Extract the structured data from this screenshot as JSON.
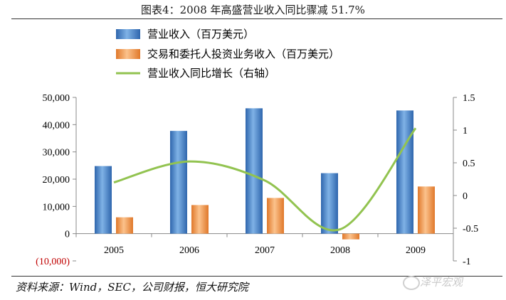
{
  "title": "图表4：2008 年高盛营业收入同比骤减 51.7%",
  "source": "资料来源：Wind，SEC，公司财报，恒大研究院",
  "watermark": "泽平宏观",
  "chart_data": {
    "type": "bar",
    "categories": [
      "2005",
      "2006",
      "2007",
      "2008",
      "2009"
    ],
    "series": [
      {
        "name": "营业收入（百万美元）",
        "type": "bar",
        "axis": "left",
        "color": "#3a78c0",
        "values": [
          24800,
          37700,
          46000,
          22200,
          45200
        ]
      },
      {
        "name": "交易和委托人投资业务收入（百万美元）",
        "type": "bar",
        "axis": "left",
        "color": "#f0913a",
        "values": [
          6000,
          10500,
          13100,
          -2100,
          17300
        ]
      },
      {
        "name": "营业收入同比增长（右轴）",
        "type": "line",
        "axis": "right",
        "color": "#92c350",
        "values": [
          0.2,
          0.52,
          0.23,
          -0.517,
          1.03
        ]
      }
    ],
    "y_left": {
      "min": -10000,
      "max": 50000,
      "step": 10000,
      "ticks": [
        "(10,000)",
        "0",
        "10,000",
        "20,000",
        "30,000",
        "40,000",
        "50,000"
      ]
    },
    "y_right": {
      "min": -1,
      "max": 1.5,
      "step": 0.5,
      "ticks": [
        "-1",
        "-0.5",
        "0",
        "0.5",
        "1",
        "1.5"
      ]
    },
    "legend_position": "top"
  }
}
